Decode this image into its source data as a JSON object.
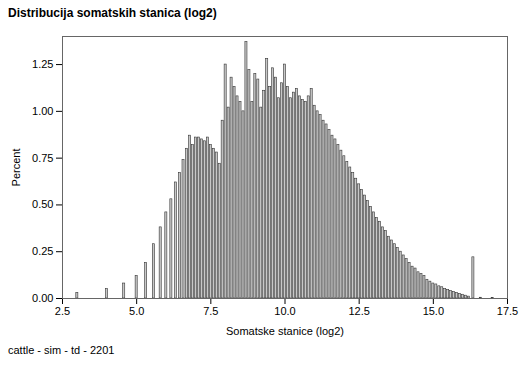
{
  "chart_data": {
    "type": "bar",
    "title": "Distribucija somatskih stanica (log2)",
    "x_label": "Somatske stanice (log2)",
    "y_label": "Percent",
    "caption": "cattle - sim - td - 2201",
    "color": "#c8c8c8",
    "grid": false,
    "xlim": [
      2.5,
      17.5
    ],
    "xticks": [
      2.5,
      {
        "value": 5,
        "label": "5.0"
      },
      7.5,
      {
        "value": 10,
        "label": "10.0"
      },
      12.5,
      {
        "value": 15,
        "label": "15.0"
      },
      17.5
    ],
    "ylim": [
      0,
      1.4
    ],
    "yticks": [
      {
        "value": 0,
        "label": "0.00"
      },
      {
        "value": 0.25,
        "label": "0.25"
      },
      {
        "value": 0.5,
        "label": "0.50"
      },
      {
        "value": 0.75,
        "label": "0.75"
      },
      {
        "value": 1,
        "label": "1.00"
      },
      {
        "value": 1.25,
        "label": "1.25"
      }
    ],
    "x": [
      3.0,
      4.0,
      4.58,
      5.0,
      5.32,
      5.58,
      5.81,
      6.0,
      6.17,
      6.32,
      6.46,
      6.58,
      6.7,
      6.8,
      6.9,
      7.0,
      7.1,
      7.2,
      7.3,
      7.4,
      7.5,
      7.6,
      7.7,
      7.8,
      7.9,
      8.0,
      8.1,
      8.2,
      8.3,
      8.4,
      8.5,
      8.6,
      8.7,
      8.8,
      8.9,
      9.0,
      9.1,
      9.2,
      9.3,
      9.4,
      9.5,
      9.6,
      9.7,
      9.8,
      9.9,
      10.0,
      10.1,
      10.2,
      10.3,
      10.4,
      10.5,
      10.6,
      10.7,
      10.8,
      10.9,
      11.0,
      11.1,
      11.2,
      11.3,
      11.4,
      11.5,
      11.6,
      11.7,
      11.8,
      11.9,
      12.0,
      12.1,
      12.2,
      12.3,
      12.4,
      12.5,
      12.6,
      12.7,
      12.8,
      12.9,
      13.0,
      13.1,
      13.2,
      13.3,
      13.4,
      13.5,
      13.6,
      13.7,
      13.8,
      13.9,
      14.0,
      14.1,
      14.2,
      14.3,
      14.4,
      14.5,
      14.6,
      14.7,
      14.8,
      14.9,
      15.0,
      15.1,
      15.2,
      15.3,
      15.4,
      15.5,
      15.6,
      15.7,
      15.8,
      15.9,
      16.0,
      16.1,
      16.2,
      16.35,
      16.6,
      17.0
    ],
    "values": [
      0.03,
      0.05,
      0.08,
      0.12,
      0.19,
      0.29,
      0.38,
      0.46,
      0.53,
      0.62,
      0.67,
      0.74,
      0.8,
      0.87,
      0.82,
      0.86,
      0.86,
      0.85,
      0.84,
      0.86,
      0.82,
      0.8,
      0.78,
      0.72,
      0.95,
      1.25,
      1.02,
      1.18,
      1.13,
      1.08,
      1.05,
      1.0,
      1.37,
      1.22,
      1.05,
      1.2,
      1.17,
      1.02,
      1.11,
      1.28,
      1.13,
      1.23,
      1.18,
      1.07,
      1.15,
      1.25,
      1.13,
      1.07,
      1.1,
      1.12,
      1.08,
      1.06,
      1.05,
      1.08,
      1.12,
      1.03,
      1.0,
      0.98,
      0.95,
      0.93,
      0.9,
      0.87,
      0.85,
      0.82,
      0.79,
      0.76,
      0.73,
      0.7,
      0.67,
      0.64,
      0.61,
      0.58,
      0.55,
      0.52,
      0.49,
      0.46,
      0.43,
      0.41,
      0.38,
      0.36,
      0.33,
      0.31,
      0.29,
      0.27,
      0.25,
      0.23,
      0.21,
      0.19,
      0.17,
      0.16,
      0.14,
      0.13,
      0.12,
      0.1,
      0.09,
      0.08,
      0.075,
      0.065,
      0.06,
      0.05,
      0.045,
      0.04,
      0.035,
      0.03,
      0.025,
      0.02,
      0.015,
      0.01,
      0.22,
      0.004,
      0.002
    ]
  }
}
